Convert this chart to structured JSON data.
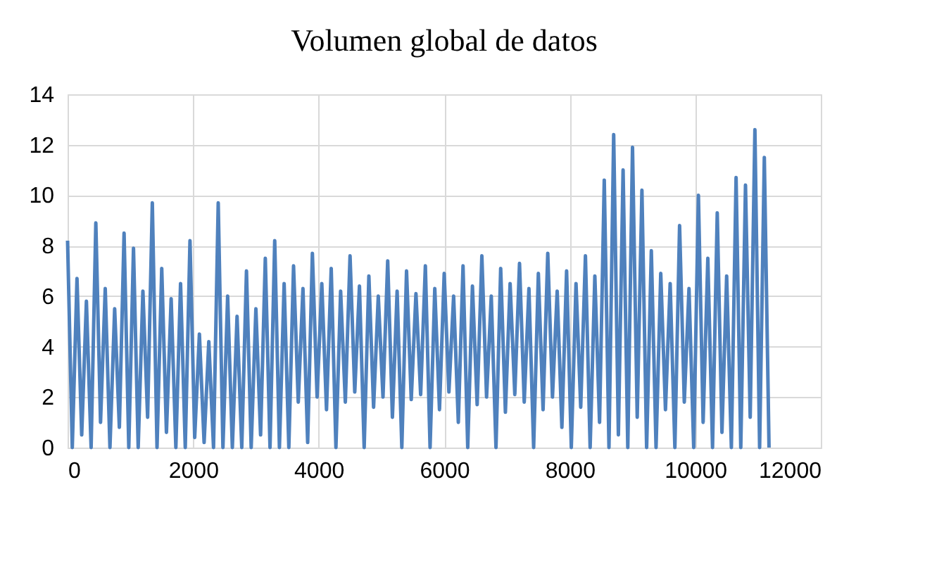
{
  "chart_data": {
    "type": "line",
    "title": "Volumen global de datos",
    "x": [
      0,
      75,
      150,
      225,
      300,
      375,
      450,
      525,
      600,
      675,
      750,
      825,
      900,
      975,
      1050,
      1125,
      1200,
      1275,
      1350,
      1425,
      1500,
      1575,
      1650,
      1725,
      1800,
      1875,
      1950,
      2025,
      2100,
      2175,
      2250,
      2325,
      2400,
      2475,
      2550,
      2625,
      2700,
      2775,
      2850,
      2925,
      3000,
      3075,
      3150,
      3225,
      3300,
      3375,
      3450,
      3525,
      3600,
      3675,
      3750,
      3825,
      3900,
      3975,
      4050,
      4125,
      4200,
      4275,
      4350,
      4425,
      4500,
      4575,
      4650,
      4725,
      4800,
      4875,
      4950,
      5025,
      5100,
      5175,
      5250,
      5325,
      5400,
      5475,
      5550,
      5625,
      5700,
      5775,
      5850,
      5925,
      6000,
      6075,
      6150,
      6225,
      6300,
      6375,
      6450,
      6525,
      6600,
      6675,
      6750,
      6825,
      6900,
      6975,
      7050,
      7125,
      7200,
      7275,
      7350,
      7425,
      7500,
      7575,
      7650,
      7725,
      7800,
      7875,
      7950,
      8025,
      8100,
      8175,
      8250,
      8325,
      8400,
      8475,
      8550,
      8625,
      8700,
      8775,
      8850,
      8925,
      9000,
      9075,
      9150,
      9225,
      9300,
      9375,
      9450,
      9525,
      9600,
      9675,
      9750,
      9825,
      9900,
      9975,
      10050,
      10125,
      10200,
      10275,
      10350,
      10425,
      10500,
      10575,
      10650,
      10725,
      10800,
      10875,
      10950,
      11025,
      11100,
      11175
    ],
    "series": [
      {
        "color": "#4f81bd",
        "values": [
          8.2,
          0,
          6.7,
          0.5,
          5.8,
          0,
          8.9,
          1.0,
          6.3,
          0,
          5.5,
          0.8,
          8.5,
          0,
          7.9,
          0,
          6.2,
          1.2,
          9.7,
          0,
          7.1,
          0.6,
          5.9,
          0,
          6.5,
          0,
          8.2,
          0.4,
          4.5,
          0.2,
          4.2,
          0,
          9.7,
          0,
          6.0,
          0,
          5.2,
          0,
          7.0,
          0,
          5.5,
          0.5,
          7.5,
          0,
          8.2,
          0,
          6.5,
          0,
          7.2,
          1.8,
          6.3,
          0.2,
          7.7,
          2.0,
          6.5,
          1.5,
          7.1,
          0,
          6.2,
          1.8,
          7.6,
          2.2,
          6.4,
          0,
          6.8,
          1.6,
          6.0,
          2.0,
          7.4,
          1.2,
          6.2,
          0,
          7.0,
          1.9,
          6.1,
          2.1,
          7.2,
          0,
          6.3,
          1.5,
          6.9,
          2.2,
          6.0,
          1.0,
          7.2,
          0,
          6.4,
          1.7,
          7.6,
          2.0,
          6.0,
          0,
          7.1,
          1.4,
          6.5,
          2.1,
          7.3,
          1.8,
          6.3,
          0,
          6.9,
          1.5,
          7.7,
          2.0,
          6.2,
          0.8,
          7.0,
          0,
          6.5,
          1.6,
          7.6,
          0,
          6.8,
          1.0,
          10.6,
          0,
          12.4,
          0.5,
          11.0,
          0,
          11.9,
          1.2,
          10.2,
          0,
          7.8,
          0,
          6.9,
          1.5,
          6.5,
          0,
          8.8,
          1.8,
          6.3,
          0,
          10.0,
          1.0,
          7.5,
          0,
          9.3,
          0.6,
          6.8,
          0,
          10.7,
          0,
          10.4,
          1.2,
          12.6,
          0,
          11.5,
          0
        ]
      }
    ],
    "xlim": [
      0,
      12000
    ],
    "xticks": [
      0,
      2000,
      4000,
      6000,
      8000,
      10000,
      12000
    ],
    "ylim": [
      0,
      14
    ],
    "yticks": [
      0,
      2,
      4,
      6,
      8,
      10,
      12,
      14
    ],
    "grid": true,
    "legend": false
  }
}
